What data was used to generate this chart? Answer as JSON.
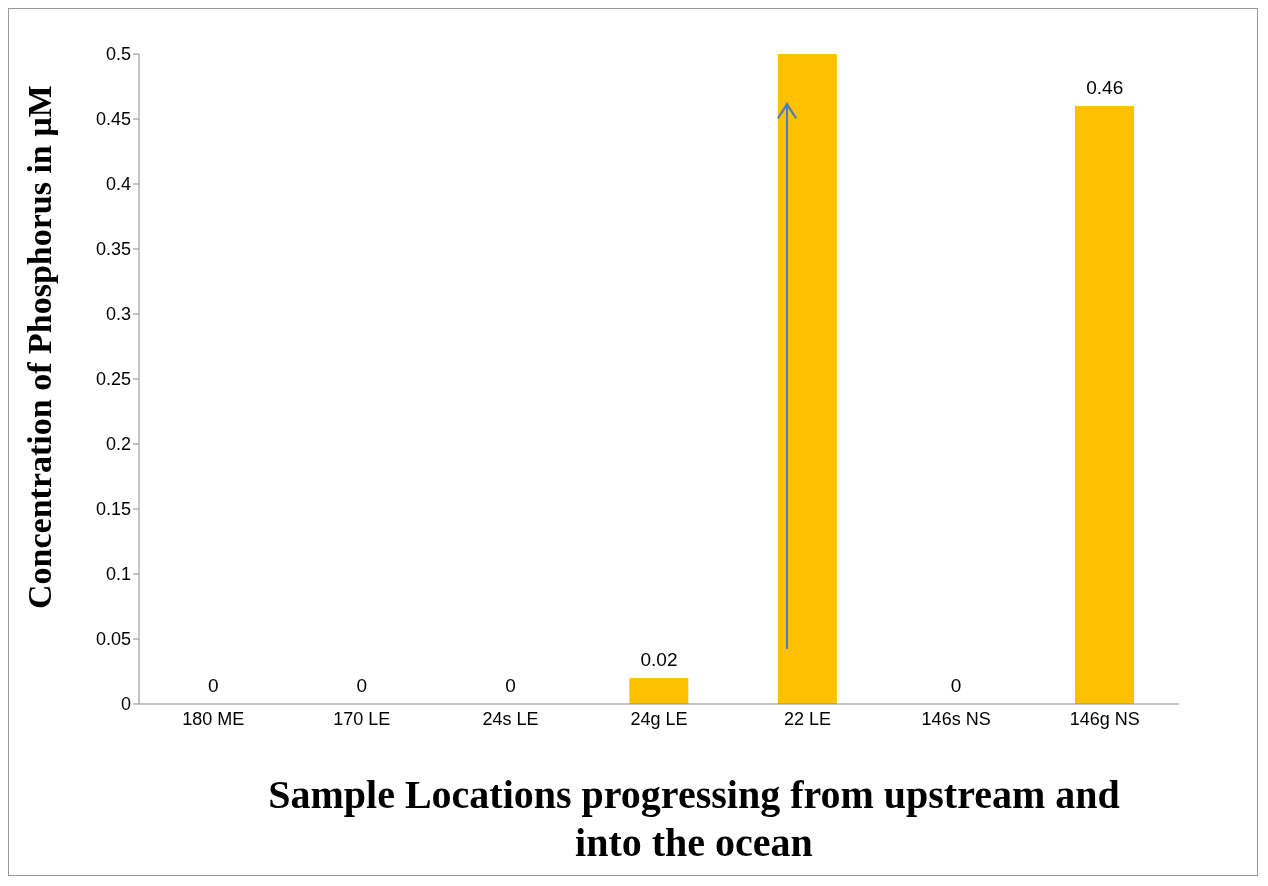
{
  "chart_data": {
    "type": "bar",
    "categories": [
      "180 ME",
      "170 LE",
      "24s LE",
      "24g LE",
      "22 LE",
      "146s NS",
      "146g NS"
    ],
    "values": [
      0,
      0,
      0,
      0.02,
      0.5,
      0,
      0.46
    ],
    "value_labels": [
      "0",
      "0",
      "0",
      "0.02",
      null,
      "0",
      "0.46"
    ],
    "color": "#ffc000",
    "ylim": [
      0,
      0.5
    ],
    "yticks": [
      0,
      0.05,
      0.1,
      0.15,
      0.2,
      0.25,
      0.3,
      0.35,
      0.4,
      0.45,
      0.5
    ],
    "xlabel": "Sample Locations progressing from upstream and into the ocean",
    "ylabel": "Concentration of Phosphorus in µM",
    "grid": false,
    "legend": false
  }
}
